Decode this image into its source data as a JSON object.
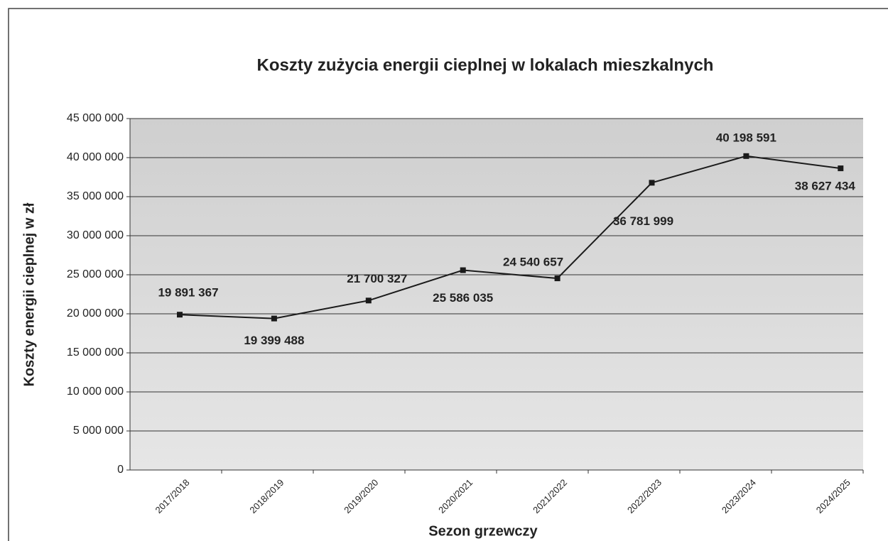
{
  "chart_data": {
    "type": "line",
    "title": "Koszty zużycia energii cieplnej w lokalach mieszkalnych",
    "x_label": "Sezon grzewczy",
    "y_label": "Koszty energii cieplnej w zł",
    "categories": [
      "2017/2018",
      "2018/2019",
      "2019/2020",
      "2020/2021",
      "2021/2022",
      "2022/2023",
      "2023/2024",
      "2024/2025"
    ],
    "values": [
      19891367,
      19399488,
      21700327,
      25586035,
      24540657,
      36781999,
      40198591,
      38627434
    ],
    "value_labels": [
      "19 891 367",
      "19 399 488",
      "21 700 327",
      "25 586 035",
      "24 540 657",
      "36 781 999",
      "40 198 591",
      "38 627 434"
    ],
    "color": "#1a1a1a",
    "ylim": [
      0,
      45000000
    ],
    "yticks": [
      0,
      {
        "value": 5000000,
        "label": "5 000 000"
      },
      {
        "value": 10000000,
        "label": "10 000 000"
      },
      {
        "value": 15000000,
        "label": "15 000 000"
      },
      {
        "value": 20000000,
        "label": "20 000 000"
      },
      {
        "value": 25000000,
        "label": "25 000 000"
      },
      {
        "value": 30000000,
        "label": "30 000 000"
      },
      {
        "value": 35000000,
        "label": "35 000 000"
      },
      {
        "value": 40000000,
        "label": "40 000 000"
      },
      {
        "value": 45000000,
        "label": "45 000 000"
      }
    ],
    "grid": true
  }
}
